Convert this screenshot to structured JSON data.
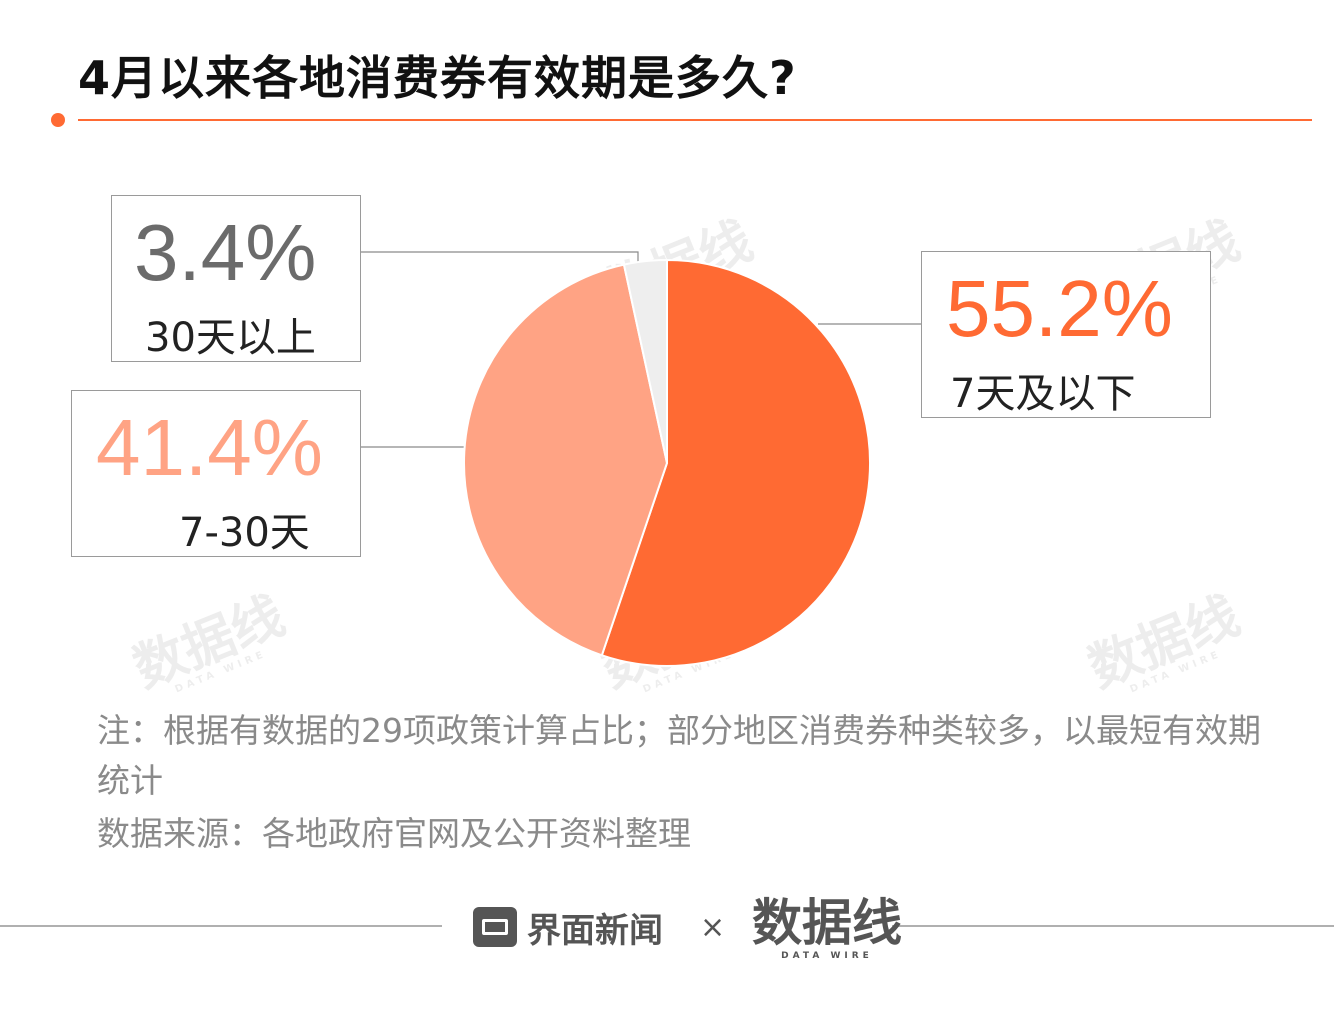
{
  "title": "4月以来各地消费券有效期是多久?",
  "colors": {
    "accent": "#ff6a33",
    "slice_7_or_less": "#ff6a33",
    "slice_7_30": "#ffa384",
    "slice_30_plus": "#eeeeee",
    "pct_7_or_less": "#ff6a33",
    "pct_7_30": "#ffa384",
    "pct_30_plus": "#6b6b6b"
  },
  "chart_data": {
    "type": "pie",
    "title": "4月以来各地消费券有效期是多久?",
    "start_angle": "12 o'clock, clockwise",
    "slices": [
      {
        "label": "7天及以下",
        "value": 55.2,
        "display": "55.2%"
      },
      {
        "label": "7-30天",
        "value": 41.4,
        "display": "41.4%"
      },
      {
        "label": "30天以上",
        "value": 3.4,
        "display": "3.4%"
      }
    ]
  },
  "callouts": {
    "c_7_or_less": {
      "pct": "55.2%",
      "label": "7天及以下"
    },
    "c_7_30": {
      "pct": "41.4%",
      "label": "7-30天"
    },
    "c_30_plus": {
      "pct": "3.4%",
      "label": "30天以上"
    }
  },
  "watermark": {
    "text": "数据线",
    "sub": "DATA WIRE"
  },
  "notes": {
    "note": "注：根据有数据的29项政策计算占比；部分地区消费券种类较多，以最短有效期统计",
    "source": "数据来源：各地政府官网及公开资料整理"
  },
  "footer": {
    "brand1": "界面新闻",
    "times": "×",
    "brand2": "数据线",
    "brand2_sub": "DATA WIRE"
  }
}
